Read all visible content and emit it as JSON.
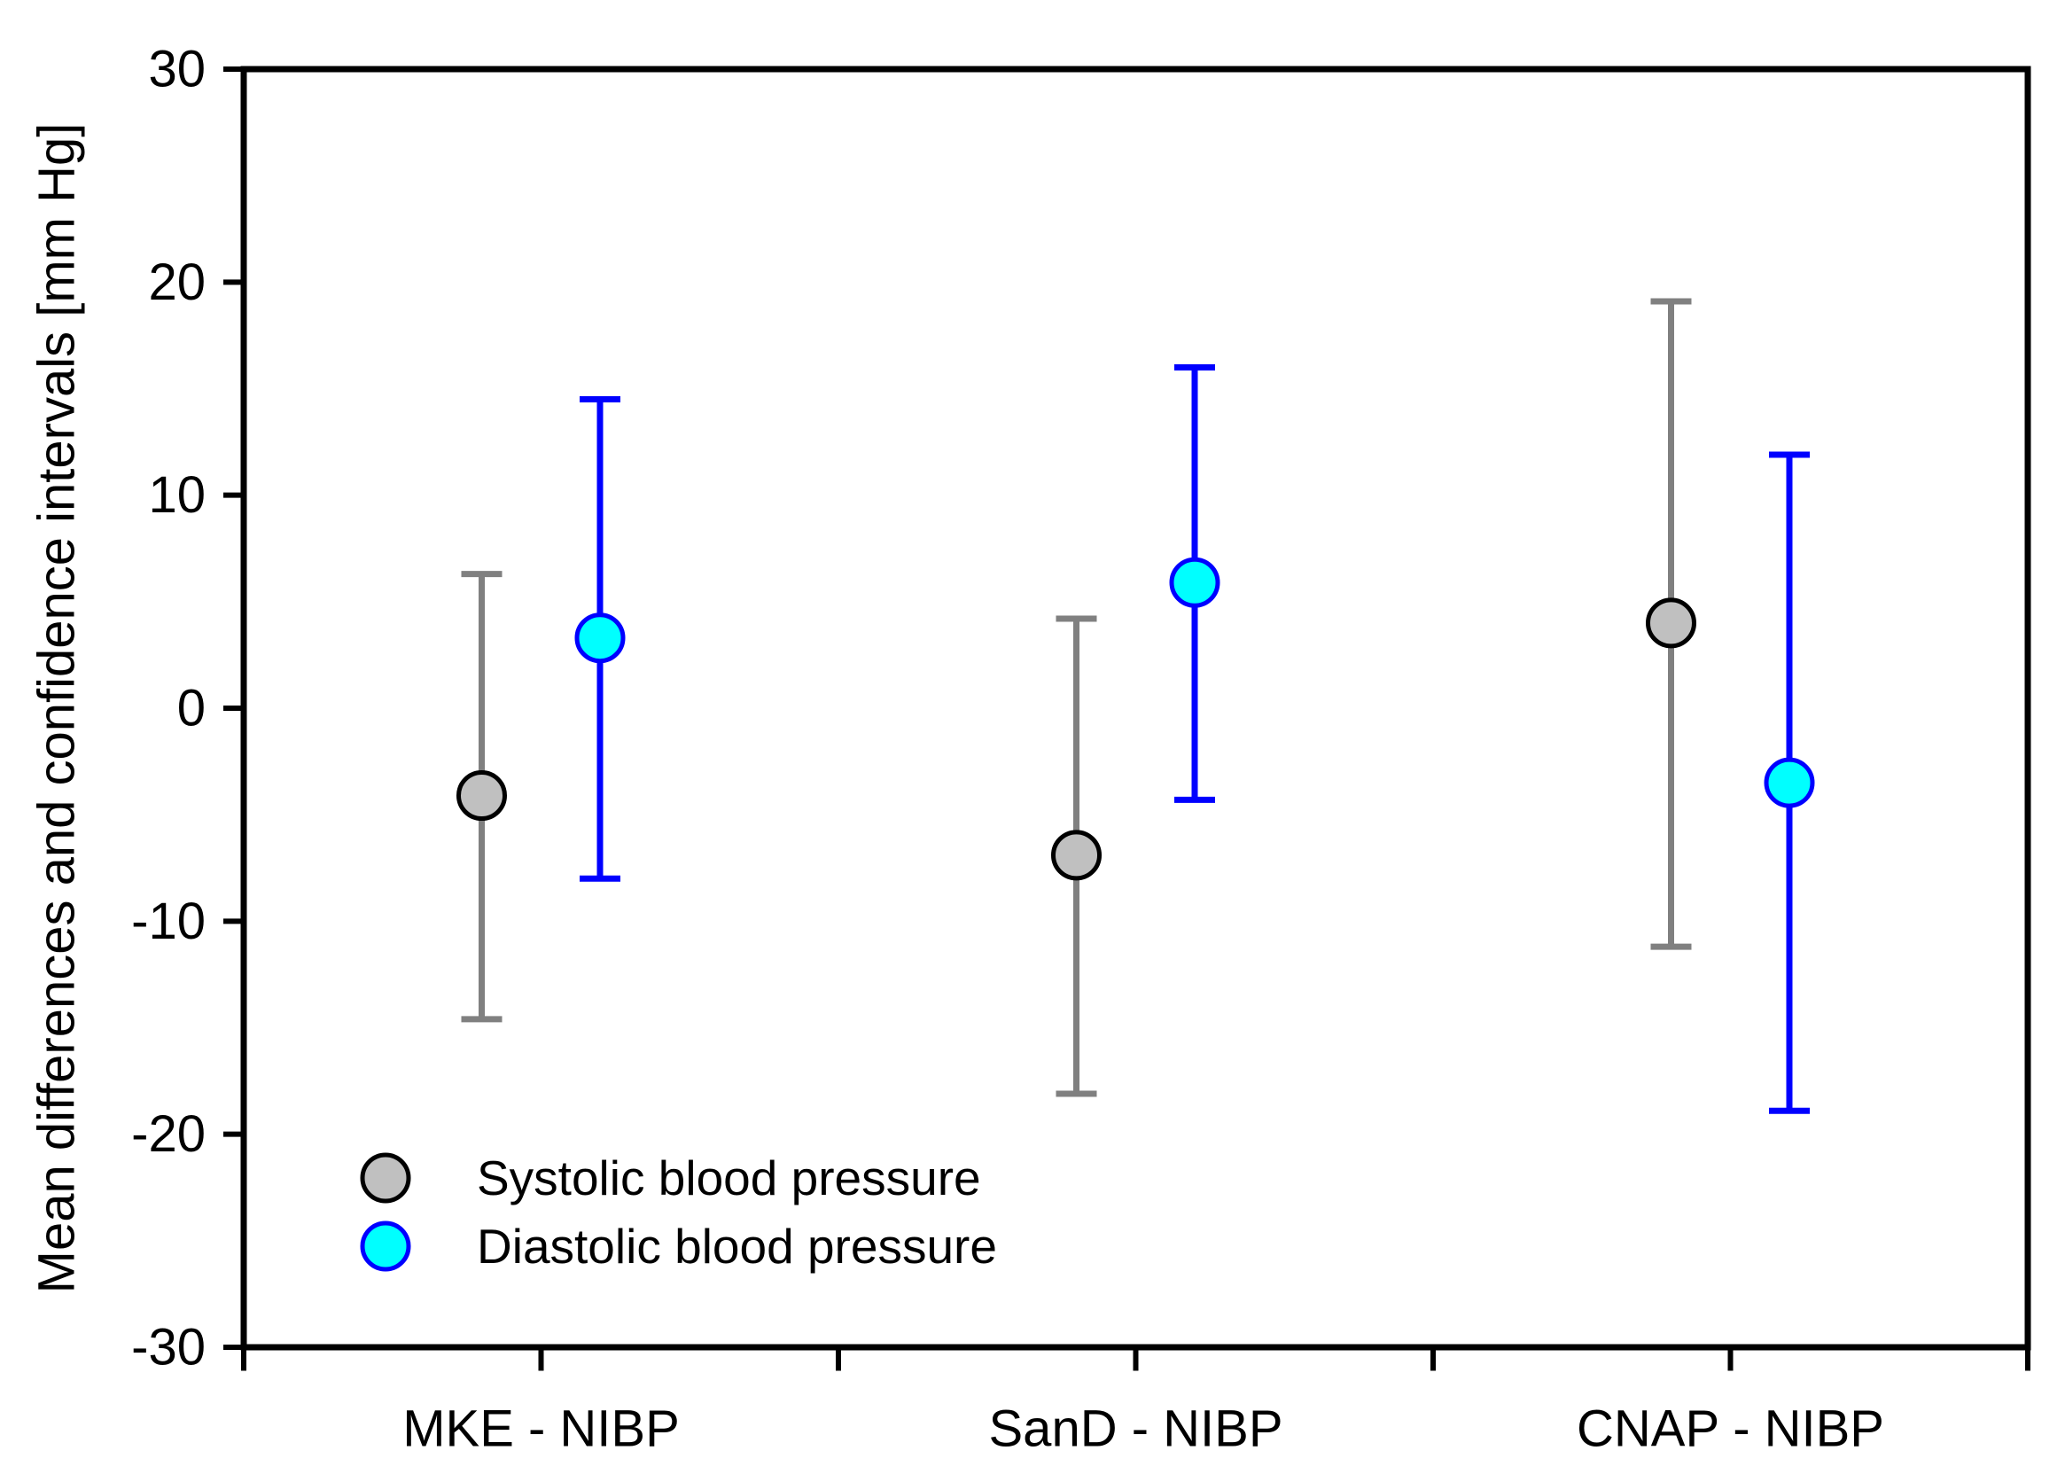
{
  "figure": {
    "background": "#FFFFFF"
  },
  "y_axis": {
    "title": "Mean differences and confidence intervals [mm Hg]",
    "min": -30,
    "max": 30,
    "tick_step": 10,
    "tick_labels": [
      "30",
      "20",
      "10",
      "0",
      "-10",
      "-20",
      "-30"
    ]
  },
  "x_axis": {
    "categories": [
      "MKE - NIBP",
      "SanD - NIBP",
      "CNAP - NIBP"
    ]
  },
  "legend": {
    "items": [
      {
        "label": "Systolic blood pressure",
        "marker_fill": "#C0C0C0",
        "marker_stroke": "#000000"
      },
      {
        "label": "Diastolic blood pressure",
        "marker_fill": "#00FFFF",
        "marker_stroke": "#0000FF"
      }
    ]
  },
  "colors": {
    "systolic_marker_fill": "#C0C0C0",
    "systolic_marker_stroke": "#000000",
    "systolic_errorbar": "#808080",
    "diastolic_marker_fill": "#00FFFF",
    "diastolic_marker_stroke": "#0000FF",
    "diastolic_errorbar": "#0000FF",
    "axis": "#000000"
  },
  "chart_data": {
    "type": "scatter",
    "subtype": "point-with-error-bars",
    "categories": [
      "MKE - NIBP",
      "SanD - NIBP",
      "CNAP - NIBP"
    ],
    "series": [
      {
        "name": "Systolic blood pressure",
        "marker_fill": "#C0C0C0",
        "marker_stroke": "#000000",
        "errorbar_color": "#808080",
        "points": [
          {
            "category": "MKE - NIBP",
            "mean": -4.1,
            "ci_low": -14.6,
            "ci_high": 6.3
          },
          {
            "category": "SanD - NIBP",
            "mean": -6.9,
            "ci_low": -18.1,
            "ci_high": 4.2
          },
          {
            "category": "CNAP - NIBP",
            "mean": 4.0,
            "ci_low": -11.2,
            "ci_high": 19.1
          }
        ]
      },
      {
        "name": "Diastolic blood pressure",
        "marker_fill": "#00FFFF",
        "marker_stroke": "#0000FF",
        "errorbar_color": "#0000FF",
        "points": [
          {
            "category": "MKE - NIBP",
            "mean": 3.3,
            "ci_low": -8.0,
            "ci_high": 14.5
          },
          {
            "category": "SanD - NIBP",
            "mean": 5.9,
            "ci_low": -4.3,
            "ci_high": 16.0
          },
          {
            "category": "CNAP - NIBP",
            "mean": -3.5,
            "ci_low": -18.9,
            "ci_high": 11.9
          }
        ]
      }
    ],
    "title": "",
    "xlabel": "",
    "ylabel": "Mean differences and confidence intervals [mm Hg]",
    "ylim": [
      -30,
      30
    ],
    "grid": false,
    "legend_position": "bottom-left-inside"
  }
}
